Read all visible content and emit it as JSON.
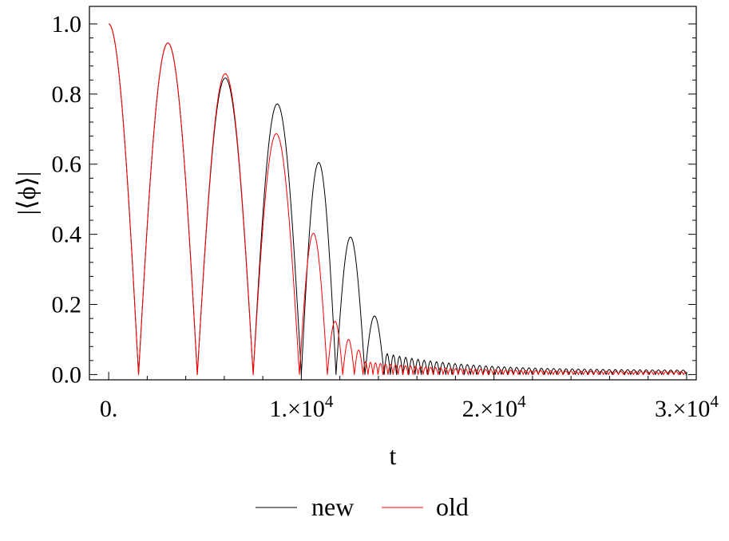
{
  "chart_data": {
    "type": "line",
    "xlabel": "t",
    "ylabel": "|⟨ϕ⟩|",
    "xlim": [
      -1000,
      30500
    ],
    "ylim": [
      -0.015,
      1.05
    ],
    "x_ticks": [
      {
        "value": 0,
        "mantissa": "0.",
        "exponent": ""
      },
      {
        "value": 10000,
        "mantissa": "1.×10",
        "exponent": "4"
      },
      {
        "value": 20000,
        "mantissa": "2.×10",
        "exponent": "4"
      },
      {
        "value": 30000,
        "mantissa": "3.×10",
        "exponent": "4"
      }
    ],
    "y_ticks": [
      {
        "value": 0.0,
        "label": "0.0"
      },
      {
        "value": 0.2,
        "label": "0.2"
      },
      {
        "value": 0.4,
        "label": "0.4"
      },
      {
        "value": 0.6,
        "label": "0.6"
      },
      {
        "value": 0.8,
        "label": "0.8"
      },
      {
        "value": 1.0,
        "label": "1.0"
      }
    ],
    "grid": false,
    "legend_position": "bottom",
    "series": [
      {
        "name": "new",
        "color": "#000000",
        "zeros": [
          0,
          1550,
          4600,
          7500,
          10000,
          11800,
          13300,
          14300
        ],
        "peaks": [
          1.0,
          0.946,
          0.846,
          0.772,
          0.605,
          0.392,
          0.167
        ],
        "tail": {
          "start": 14300,
          "end": 30000,
          "peak_start": 0.05,
          "peak_end": 0.012,
          "period": 320
        }
      },
      {
        "name": "old",
        "color": "#ff0000",
        "zeros": [
          0,
          1550,
          4600,
          7500,
          9900,
          11350,
          12150,
          12750,
          13200
        ],
        "peaks": [
          1.0,
          0.946,
          0.858,
          0.687,
          0.403,
          0.152,
          0.1,
          0.07
        ],
        "tail": {
          "start": 13200,
          "end": 30000,
          "peak_start": 0.03,
          "peak_end": 0.008,
          "period": 260
        }
      }
    ]
  }
}
